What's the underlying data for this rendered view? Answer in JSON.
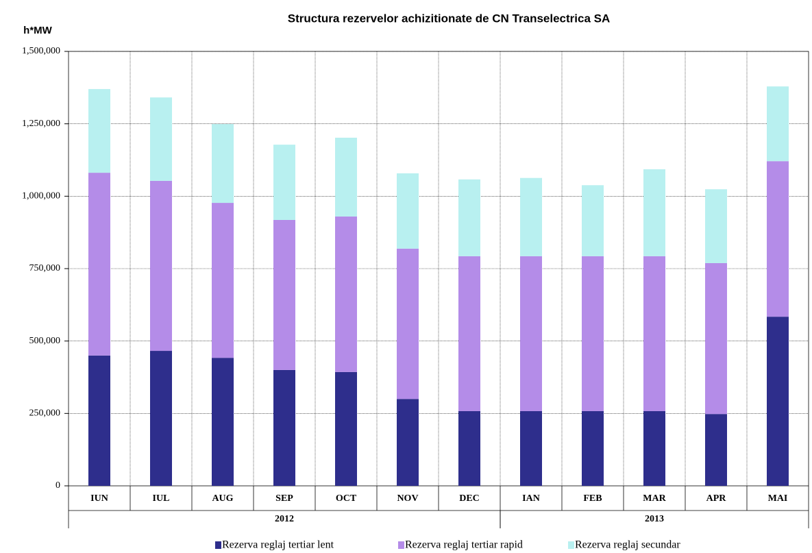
{
  "chart_data": {
    "type": "stacked_bar",
    "title": "Structura rezervelor achizitionate de CN Transelectrica SA",
    "y_axis_label": "h*MW",
    "categories": [
      "IUN",
      "IUL",
      "AUG",
      "SEP",
      "OCT",
      "NOV",
      "DEC",
      "IAN",
      "FEB",
      "MAR",
      "APR",
      "MAI"
    ],
    "group_labels": [
      "2012",
      "2013"
    ],
    "group_sizes": [
      7,
      5
    ],
    "series": [
      {
        "name": "Rezerva reglaj tertiar lent",
        "color": "#2e2e8c",
        "values": [
          450000,
          466000,
          442000,
          400000,
          393000,
          300000,
          258000,
          258000,
          258000,
          258000,
          248000,
          584000
        ]
      },
      {
        "name": "Rezerva reglaj tertiar rapid",
        "color": "#b48ce8",
        "values": [
          631000,
          587000,
          535000,
          518000,
          537000,
          519000,
          535000,
          535000,
          535000,
          535000,
          521000,
          537000
        ]
      },
      {
        "name": "Rezerva reglaj secundar",
        "color": "#b8f0f0",
        "values": [
          289000,
          288000,
          272000,
          260000,
          272000,
          260000,
          265000,
          270000,
          245000,
          300000,
          255000,
          258000
        ]
      }
    ],
    "ylim": [
      0,
      1500000
    ],
    "yticks": [
      0,
      {
        "value": 250000,
        "label": "250,000"
      },
      {
        "value": 500000,
        "label": "500,000"
      },
      {
        "value": 750000,
        "label": "750,000"
      },
      {
        "value": 1000000,
        "label": "1,000,000"
      },
      {
        "value": 1250000,
        "label": "1,250,000"
      },
      {
        "value": 1500000,
        "label": "1,500,000"
      }
    ],
    "grid": true,
    "legend": "bottom"
  }
}
